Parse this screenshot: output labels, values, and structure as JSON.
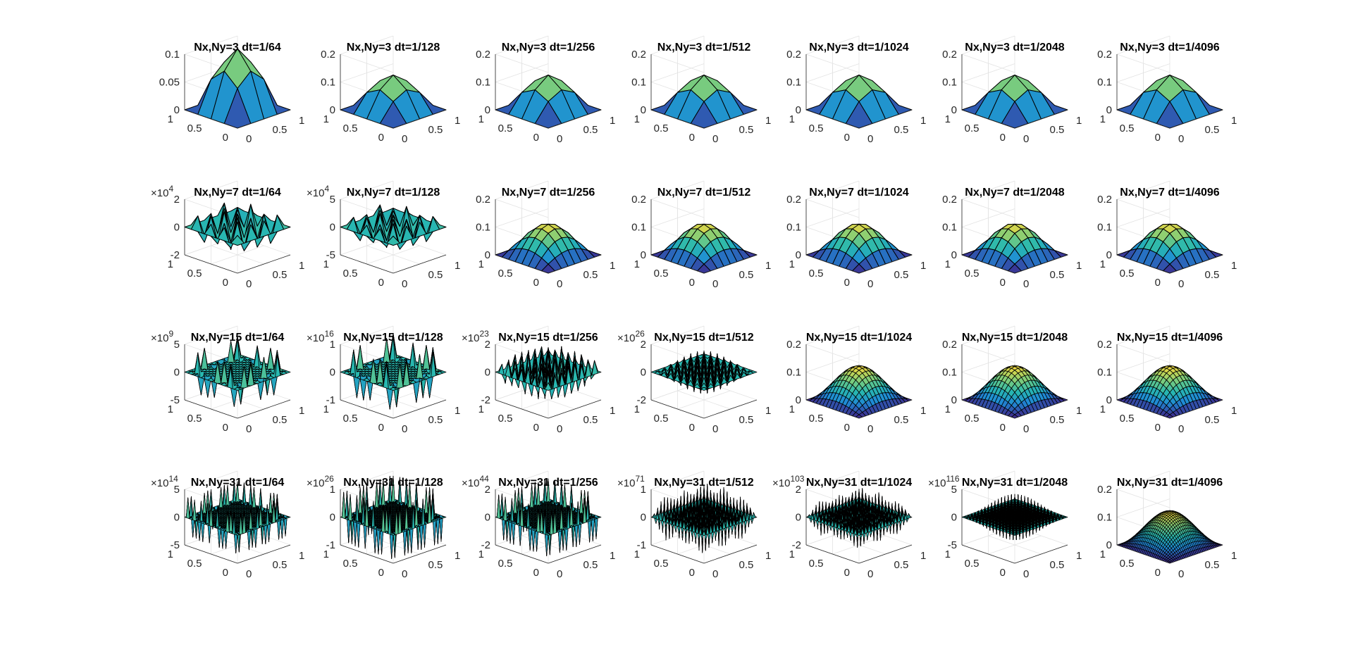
{
  "figure": {
    "background": "#ffffff",
    "colormap": [
      "#3e2a8c",
      "#1f8ad6",
      "#28b8b0",
      "#7fcd7a",
      "#f2d93c"
    ],
    "grid": true
  },
  "chart_data": [
    {
      "type": "surface",
      "title": "Nx,Ny=3  dt=1/64",
      "n": 3,
      "zlim": [
        0,
        0.1
      ],
      "zticks": [
        "0",
        "0.05",
        "0.1"
      ],
      "exponent": "",
      "xticks": [
        "0",
        "0.5",
        "1"
      ],
      "yticks": [
        "0",
        "0.5",
        "1"
      ],
      "pattern": "smooth",
      "peak": 0.11
    },
    {
      "type": "surface",
      "title": "Nx,Ny=3  dt=1/128",
      "n": 3,
      "zlim": [
        0,
        0.2
      ],
      "zticks": [
        "0",
        "0.1",
        "0.2"
      ],
      "exponent": "",
      "xticks": [
        "0",
        "0.5",
        "1"
      ],
      "yticks": [
        "0",
        "0.5",
        "1"
      ],
      "pattern": "smooth",
      "peak": 0.125
    },
    {
      "type": "surface",
      "title": "Nx,Ny=3  dt=1/256",
      "n": 3,
      "zlim": [
        0,
        0.2
      ],
      "zticks": [
        "0",
        "0.1",
        "0.2"
      ],
      "exponent": "",
      "xticks": [
        "0",
        "0.5",
        "1"
      ],
      "yticks": [
        "0",
        "0.5",
        "1"
      ],
      "pattern": "smooth",
      "peak": 0.125
    },
    {
      "type": "surface",
      "title": "Nx,Ny=3  dt=1/512",
      "n": 3,
      "zlim": [
        0,
        0.2
      ],
      "zticks": [
        "0",
        "0.1",
        "0.2"
      ],
      "exponent": "",
      "xticks": [
        "0",
        "0.5",
        "1"
      ],
      "yticks": [
        "0",
        "0.5",
        "1"
      ],
      "pattern": "smooth",
      "peak": 0.125
    },
    {
      "type": "surface",
      "title": "Nx,Ny=3  dt=1/1024",
      "n": 3,
      "zlim": [
        0,
        0.2
      ],
      "zticks": [
        "0",
        "0.1",
        "0.2"
      ],
      "exponent": "",
      "xticks": [
        "0",
        "0.5",
        "1"
      ],
      "yticks": [
        "0",
        "0.5",
        "1"
      ],
      "pattern": "smooth",
      "peak": 0.125
    },
    {
      "type": "surface",
      "title": "Nx,Ny=3  dt=1/2048",
      "n": 3,
      "zlim": [
        0,
        0.2
      ],
      "zticks": [
        "0",
        "0.1",
        "0.2"
      ],
      "exponent": "",
      "xticks": [
        "0",
        "0.5",
        "1"
      ],
      "yticks": [
        "0",
        "0.5",
        "1"
      ],
      "pattern": "smooth",
      "peak": 0.125
    },
    {
      "type": "surface",
      "title": "Nx,Ny=3  dt=1/4096",
      "n": 3,
      "zlim": [
        0,
        0.2
      ],
      "zticks": [
        "0",
        "0.1",
        "0.2"
      ],
      "exponent": "",
      "xticks": [
        "0",
        "0.5",
        "1"
      ],
      "yticks": [
        "0",
        "0.5",
        "1"
      ],
      "pattern": "smooth",
      "peak": 0.125
    },
    {
      "type": "surface",
      "title": "Nx,Ny=7  dt=1/64",
      "n": 7,
      "zlim": [
        -2,
        2
      ],
      "zticks": [
        "-2",
        "0",
        "2"
      ],
      "exponent": "4",
      "xticks": [
        "0",
        "0.5",
        "1"
      ],
      "yticks": [
        "0",
        "0.5",
        "1"
      ],
      "pattern": "oscillating",
      "peak": 1.6
    },
    {
      "type": "surface",
      "title": "Nx,Ny=7  dt=1/128",
      "n": 7,
      "zlim": [
        -5,
        5
      ],
      "zticks": [
        "-5",
        "0",
        "5"
      ],
      "exponent": "4",
      "xticks": [
        "0",
        "0.5",
        "1"
      ],
      "yticks": [
        "0",
        "0.5",
        "1"
      ],
      "pattern": "oscillating",
      "peak": 3.5
    },
    {
      "type": "surface",
      "title": "Nx,Ny=7  dt=1/256",
      "n": 7,
      "zlim": [
        0,
        0.2
      ],
      "zticks": [
        "0",
        "0.1",
        "0.2"
      ],
      "exponent": "",
      "xticks": [
        "0",
        "0.5",
        "1"
      ],
      "yticks": [
        "0",
        "0.5",
        "1"
      ],
      "pattern": "smooth",
      "peak": 0.11
    },
    {
      "type": "surface",
      "title": "Nx,Ny=7  dt=1/512",
      "n": 7,
      "zlim": [
        0,
        0.2
      ],
      "zticks": [
        "0",
        "0.1",
        "0.2"
      ],
      "exponent": "",
      "xticks": [
        "0",
        "0.5",
        "1"
      ],
      "yticks": [
        "0",
        "0.5",
        "1"
      ],
      "pattern": "smooth",
      "peak": 0.11
    },
    {
      "type": "surface",
      "title": "Nx,Ny=7  dt=1/1024",
      "n": 7,
      "zlim": [
        0,
        0.2
      ],
      "zticks": [
        "0",
        "0.1",
        "0.2"
      ],
      "exponent": "",
      "xticks": [
        "0",
        "0.5",
        "1"
      ],
      "yticks": [
        "0",
        "0.5",
        "1"
      ],
      "pattern": "smooth",
      "peak": 0.11
    },
    {
      "type": "surface",
      "title": "Nx,Ny=7  dt=1/2048",
      "n": 7,
      "zlim": [
        0,
        0.2
      ],
      "zticks": [
        "0",
        "0.1",
        "0.2"
      ],
      "exponent": "",
      "xticks": [
        "0",
        "0.5",
        "1"
      ],
      "yticks": [
        "0",
        "0.5",
        "1"
      ],
      "pattern": "smooth",
      "peak": 0.11
    },
    {
      "type": "surface",
      "title": "Nx,Ny=7  dt=1/4096",
      "n": 7,
      "zlim": [
        0,
        0.2
      ],
      "zticks": [
        "0",
        "0.1",
        "0.2"
      ],
      "exponent": "",
      "xticks": [
        "0",
        "0.5",
        "1"
      ],
      "yticks": [
        "0",
        "0.5",
        "1"
      ],
      "pattern": "smooth",
      "peak": 0.11
    },
    {
      "type": "surface",
      "title": "Nx,Ny=15  dt=1/64",
      "n": 15,
      "zlim": [
        -5,
        5
      ],
      "zticks": [
        "-5",
        "0",
        "5"
      ],
      "exponent": "9",
      "xticks": [
        "0",
        "0.5",
        "1"
      ],
      "yticks": [
        "0",
        "0.5",
        "1"
      ],
      "pattern": "edge",
      "peak": 3.5
    },
    {
      "type": "surface",
      "title": "Nx,Ny=15  dt=1/128",
      "n": 15,
      "zlim": [
        -1,
        1
      ],
      "zticks": [
        "-1",
        "0",
        "1"
      ],
      "exponent": "16",
      "xticks": [
        "0",
        "0.5",
        "1"
      ],
      "yticks": [
        "0",
        "0.5",
        "1"
      ],
      "pattern": "edge",
      "peak": 0.8
    },
    {
      "type": "surface",
      "title": "Nx,Ny=15  dt=1/256",
      "n": 15,
      "zlim": [
        -2,
        2
      ],
      "zticks": [
        "-2",
        "0",
        "2"
      ],
      "exponent": "23",
      "xticks": [
        "0",
        "0.5",
        "1"
      ],
      "yticks": [
        "0",
        "0.5",
        "1"
      ],
      "pattern": "oscillating",
      "peak": 1.8
    },
    {
      "type": "surface",
      "title": "Nx,Ny=15  dt=1/512",
      "n": 15,
      "zlim": [
        -2,
        2
      ],
      "zticks": [
        "-2",
        "0",
        "2"
      ],
      "exponent": "26",
      "xticks": [
        "0",
        "0.5",
        "1"
      ],
      "yticks": [
        "0",
        "0.5",
        "1"
      ],
      "pattern": "dense",
      "peak": 1.4
    },
    {
      "type": "surface",
      "title": "Nx,Ny=15  dt=1/1024",
      "n": 15,
      "zlim": [
        0,
        0.2
      ],
      "zticks": [
        "0",
        "0.1",
        "0.2"
      ],
      "exponent": "",
      "xticks": [
        "0",
        "0.5",
        "1"
      ],
      "yticks": [
        "0",
        "0.5",
        "1"
      ],
      "pattern": "smooth",
      "peak": 0.12
    },
    {
      "type": "surface",
      "title": "Nx,Ny=15  dt=1/2048",
      "n": 15,
      "zlim": [
        0,
        0.2
      ],
      "zticks": [
        "0",
        "0.1",
        "0.2"
      ],
      "exponent": "",
      "xticks": [
        "0",
        "0.5",
        "1"
      ],
      "yticks": [
        "0",
        "0.5",
        "1"
      ],
      "pattern": "smooth",
      "peak": 0.12
    },
    {
      "type": "surface",
      "title": "Nx,Ny=15  dt=1/4096",
      "n": 15,
      "zlim": [
        0,
        0.2
      ],
      "zticks": [
        "0",
        "0.1",
        "0.2"
      ],
      "exponent": "",
      "xticks": [
        "0",
        "0.5",
        "1"
      ],
      "yticks": [
        "0",
        "0.5",
        "1"
      ],
      "pattern": "smooth",
      "peak": 0.12
    },
    {
      "type": "surface",
      "title": "Nx,Ny=31  dt=1/64",
      "n": 31,
      "zlim": [
        -5,
        5
      ],
      "zticks": [
        "-5",
        "0",
        "5"
      ],
      "exponent": "14",
      "xticks": [
        "0",
        "0.5",
        "1"
      ],
      "yticks": [
        "0",
        "0.5",
        "1"
      ],
      "pattern": "edge",
      "peak": 3.5
    },
    {
      "type": "surface",
      "title": "Nx,Ny=31  dt=1/128",
      "n": 31,
      "zlim": [
        -1,
        1
      ],
      "zticks": [
        "-1",
        "0",
        "1"
      ],
      "exponent": "26",
      "xticks": [
        "0",
        "0.5",
        "1"
      ],
      "yticks": [
        "0",
        "0.5",
        "1"
      ],
      "pattern": "edge",
      "peak": 0.9
    },
    {
      "type": "surface",
      "title": "Nx,Ny=31  dt=1/256",
      "n": 31,
      "zlim": [
        -2,
        2
      ],
      "zticks": [
        "-2",
        "0",
        "2"
      ],
      "exponent": "44",
      "xticks": [
        "0",
        "0.5",
        "1"
      ],
      "yticks": [
        "0",
        "0.5",
        "1"
      ],
      "pattern": "edge",
      "peak": 1.6
    },
    {
      "type": "surface",
      "title": "Nx,Ny=31  dt=1/512",
      "n": 31,
      "zlim": [
        -1,
        1
      ],
      "zticks": [
        "-1",
        "0",
        "1"
      ],
      "exponent": "71",
      "xticks": [
        "0",
        "0.5",
        "1"
      ],
      "yticks": [
        "0",
        "0.5",
        "1"
      ],
      "pattern": "ringed",
      "peak": 0.9
    },
    {
      "type": "surface",
      "title": "Nx,Ny=31  dt=1/1024",
      "n": 31,
      "zlim": [
        -2,
        2
      ],
      "zticks": [
        "-2",
        "0",
        "2"
      ],
      "exponent": "103",
      "xticks": [
        "0",
        "0.5",
        "1"
      ],
      "yticks": [
        "0",
        "0.5",
        "1"
      ],
      "pattern": "ringed",
      "peak": 1.4
    },
    {
      "type": "surface",
      "title": "Nx,Ny=31  dt=1/2048",
      "n": 31,
      "zlim": [
        -5,
        5
      ],
      "zticks": [
        "-5",
        "0",
        "5"
      ],
      "exponent": "116",
      "xticks": [
        "0",
        "0.5",
        "1"
      ],
      "yticks": [
        "0",
        "0.5",
        "1"
      ],
      "pattern": "dense",
      "peak": 3.8
    },
    {
      "type": "surface",
      "title": "Nx,Ny=31  dt=1/4096",
      "n": 31,
      "zlim": [
        0,
        0.2
      ],
      "zticks": [
        "0",
        "0.1",
        "0.2"
      ],
      "exponent": "",
      "xticks": [
        "0",
        "0.5",
        "1"
      ],
      "yticks": [
        "0",
        "0.5",
        "1"
      ],
      "pattern": "smooth",
      "peak": 0.12
    }
  ]
}
